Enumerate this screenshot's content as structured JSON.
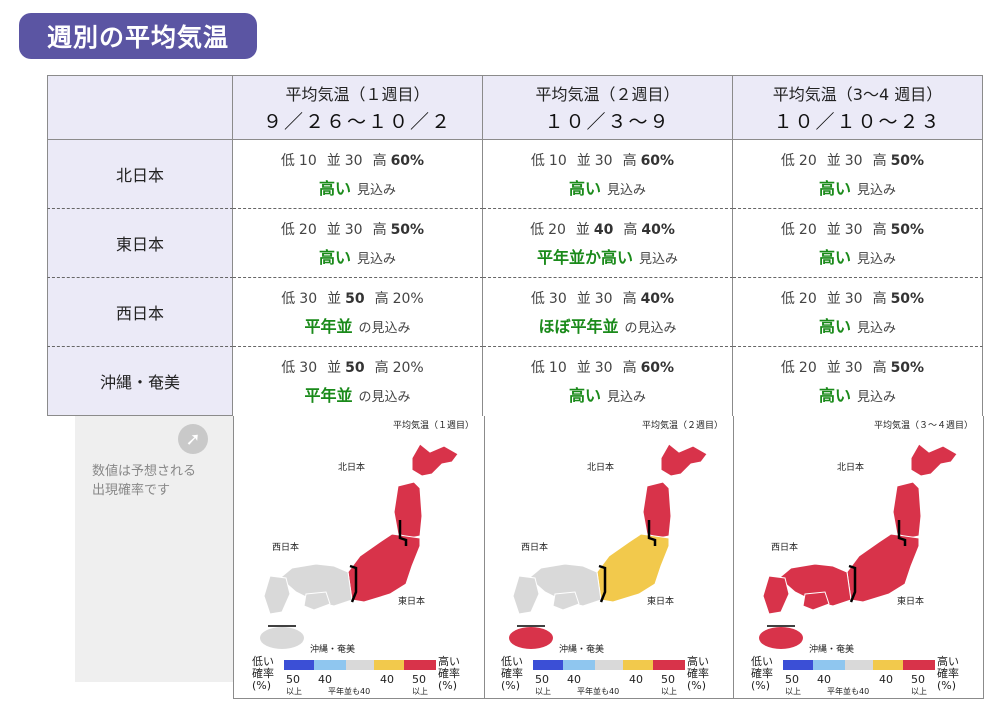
{
  "title": "週別の平均気温",
  "columns": [
    {
      "label": "平均気温（１週目）",
      "dates": "９／２６〜１０／２"
    },
    {
      "label": "平均気温（２週目）",
      "dates": "１０／３〜９"
    },
    {
      "label": "平均気温（3〜4 週目）",
      "dates": "１０／１０〜２３"
    }
  ],
  "prob_labels": {
    "low": "低",
    "normal": "並",
    "high": "高"
  },
  "rows": [
    {
      "region": "北日本",
      "cells": [
        {
          "low": "10",
          "normal": "30",
          "high": "60%",
          "bold": "high",
          "keyword": "高い",
          "suffix": "見込み"
        },
        {
          "low": "10",
          "normal": "30",
          "high": "60%",
          "bold": "high",
          "keyword": "高い",
          "suffix": "見込み"
        },
        {
          "low": "20",
          "normal": "30",
          "high": "50%",
          "bold": "high",
          "keyword": "高い",
          "suffix": "見込み"
        }
      ]
    },
    {
      "region": "東日本",
      "cells": [
        {
          "low": "20",
          "normal": "30",
          "high": "50%",
          "bold": "high",
          "keyword": "高い",
          "suffix": "見込み"
        },
        {
          "low": "20",
          "normal": "40",
          "high": "40%",
          "bold": "normal-high",
          "keyword": "平年並か高い",
          "suffix": "見込み"
        },
        {
          "low": "20",
          "normal": "30",
          "high": "50%",
          "bold": "high",
          "keyword": "高い",
          "suffix": "見込み"
        }
      ]
    },
    {
      "region": "西日本",
      "cells": [
        {
          "low": "30",
          "normal": "50",
          "high": "20%",
          "bold": "normal",
          "keyword": "平年並",
          "suffix": "の見込み"
        },
        {
          "low": "30",
          "normal": "30",
          "high": "40%",
          "bold": "high",
          "keyword": "ほぼ平年並",
          "suffix": "の見込み"
        },
        {
          "low": "20",
          "normal": "30",
          "high": "50%",
          "bold": "high",
          "keyword": "高い",
          "suffix": "見込み"
        }
      ]
    },
    {
      "region": "沖縄・奄美",
      "cells": [
        {
          "low": "30",
          "normal": "50",
          "high": "20%",
          "bold": "normal",
          "keyword": "平年並",
          "suffix": "の見込み"
        },
        {
          "low": "10",
          "normal": "30",
          "high": "60%",
          "bold": "high",
          "keyword": "高い",
          "suffix": "見込み"
        },
        {
          "low": "20",
          "normal": "30",
          "high": "50%",
          "bold": "high",
          "keyword": "高い",
          "suffix": "見込み"
        }
      ]
    }
  ],
  "note": {
    "line1": "数値は予想される",
    "line2": "出現確率です"
  },
  "maps": [
    {
      "title": "平均気温（１週目）",
      "north": "red",
      "east": "red",
      "west": "gray",
      "okinawa": "gray"
    },
    {
      "title": "平均気温（２週目）",
      "north": "red",
      "east": "yellow",
      "west": "gray",
      "okinawa": "red"
    },
    {
      "title": "平均気温（３〜４週目）",
      "north": "red",
      "east": "red",
      "west": "red",
      "okinawa": "red"
    }
  ],
  "map_labels": {
    "north": "北日本",
    "east": "東日本",
    "west": "西日本",
    "okinawa": "沖縄・奄美"
  },
  "legend": {
    "low_label": "低い\n確率\n(%)",
    "high_label": "高い\n確率\n(%)",
    "ticks": [
      "50",
      "40",
      "40",
      "50"
    ],
    "sub_ijou": "以上",
    "normal_note": "平年並も40"
  },
  "colors": {
    "red": "#d8334a",
    "yellow": "#f2c94c",
    "gray": "#d9d9d9",
    "blue": "#3b4fd6",
    "lightblue": "#8fc6ef",
    "header_bg": "#ebeaf7",
    "title_bg": "#5b55a3",
    "keyword_green": "#1a8a1a"
  }
}
